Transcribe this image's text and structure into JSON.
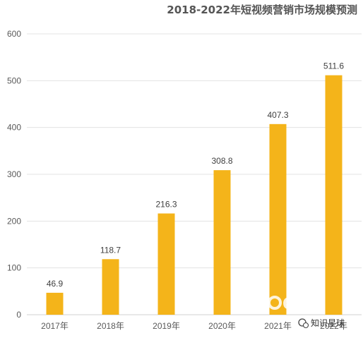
{
  "chart_data": {
    "type": "bar",
    "title": "2018-2022年短视频营销市场规模预测",
    "xlabel": "",
    "ylabel": "",
    "categories": [
      "2017年",
      "2018年",
      "2019年",
      "2020年",
      "2021年",
      "2022年"
    ],
    "values": [
      46.9,
      118.7,
      216.3,
      308.8,
      407.3,
      511.6
    ],
    "ylim": [
      0,
      600
    ],
    "yticks": [
      "0",
      "100",
      "200",
      "300",
      "400",
      "500",
      "600"
    ],
    "data_labels": [
      "46.9",
      "118.7",
      "216.3",
      "308.8",
      "407.3",
      "511.6"
    ],
    "grid": true,
    "legend": "none",
    "bar_color": "#f4b41a"
  },
  "watermark": {
    "latin_text": "Qua",
    "caption": "知识星球"
  }
}
